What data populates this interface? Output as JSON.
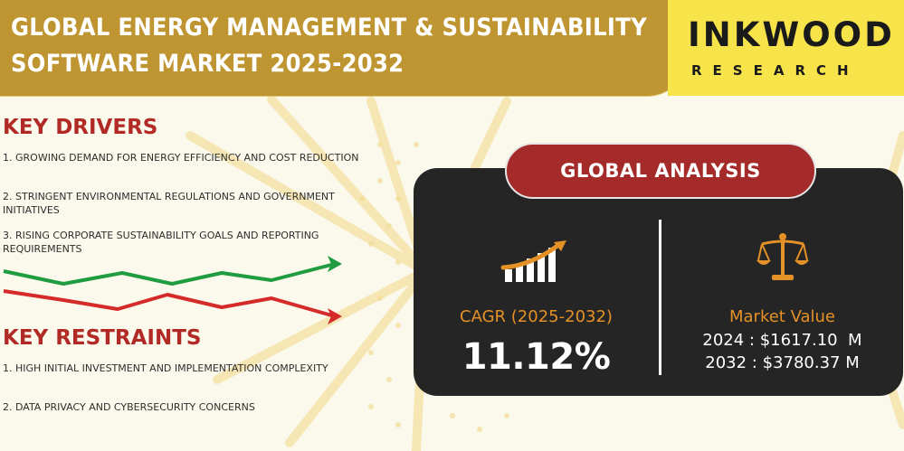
{
  "header": {
    "title_line1": "GLOBAL ENERGY MANAGEMENT & SUSTAINABILITY",
    "title_line2": "SOFTWARE MARKET 2025-2032"
  },
  "logo": {
    "name": "INKWOOD",
    "sub": "RESEARCH"
  },
  "drivers": {
    "heading": "KEY DRIVERS",
    "items": [
      "1. GROWING DEMAND FOR ENERGY EFFICIENCY AND COST REDUCTION",
      "2. STRINGENT ENVIRONMENTAL REGULATIONS AND GOVERNMENT INITIATIVES",
      "3. RISING CORPORATE SUSTAINABILITY GOALS AND REPORTING REQUIREMENTS"
    ]
  },
  "restraints": {
    "heading": "KEY RESTRAINTS",
    "items": [
      "1. HIGH INITIAL INVESTMENT AND IMPLEMENTATION COMPLEXITY",
      "2. DATA PRIVACY AND CYBERSECURITY CONCERNS"
    ]
  },
  "analysis": {
    "heading": "GLOBAL ANALYSIS",
    "cagr_label": "CAGR (2025-2032)",
    "cagr_value": "11.12%",
    "market_value_label": "Market Value",
    "market_value_2024": "2024 : $1617.10  M",
    "market_value_2032": "2032 : $3780.37 M"
  },
  "icons": {
    "growth": "bar-growth-arrow-icon",
    "value": "balance-scale-icon"
  },
  "colors": {
    "gold": "#bf9531",
    "yellow": "#f7e34a",
    "red": "#b22a26",
    "green": "#1e9c3f",
    "orange": "#e49127",
    "dark": "#252525"
  }
}
